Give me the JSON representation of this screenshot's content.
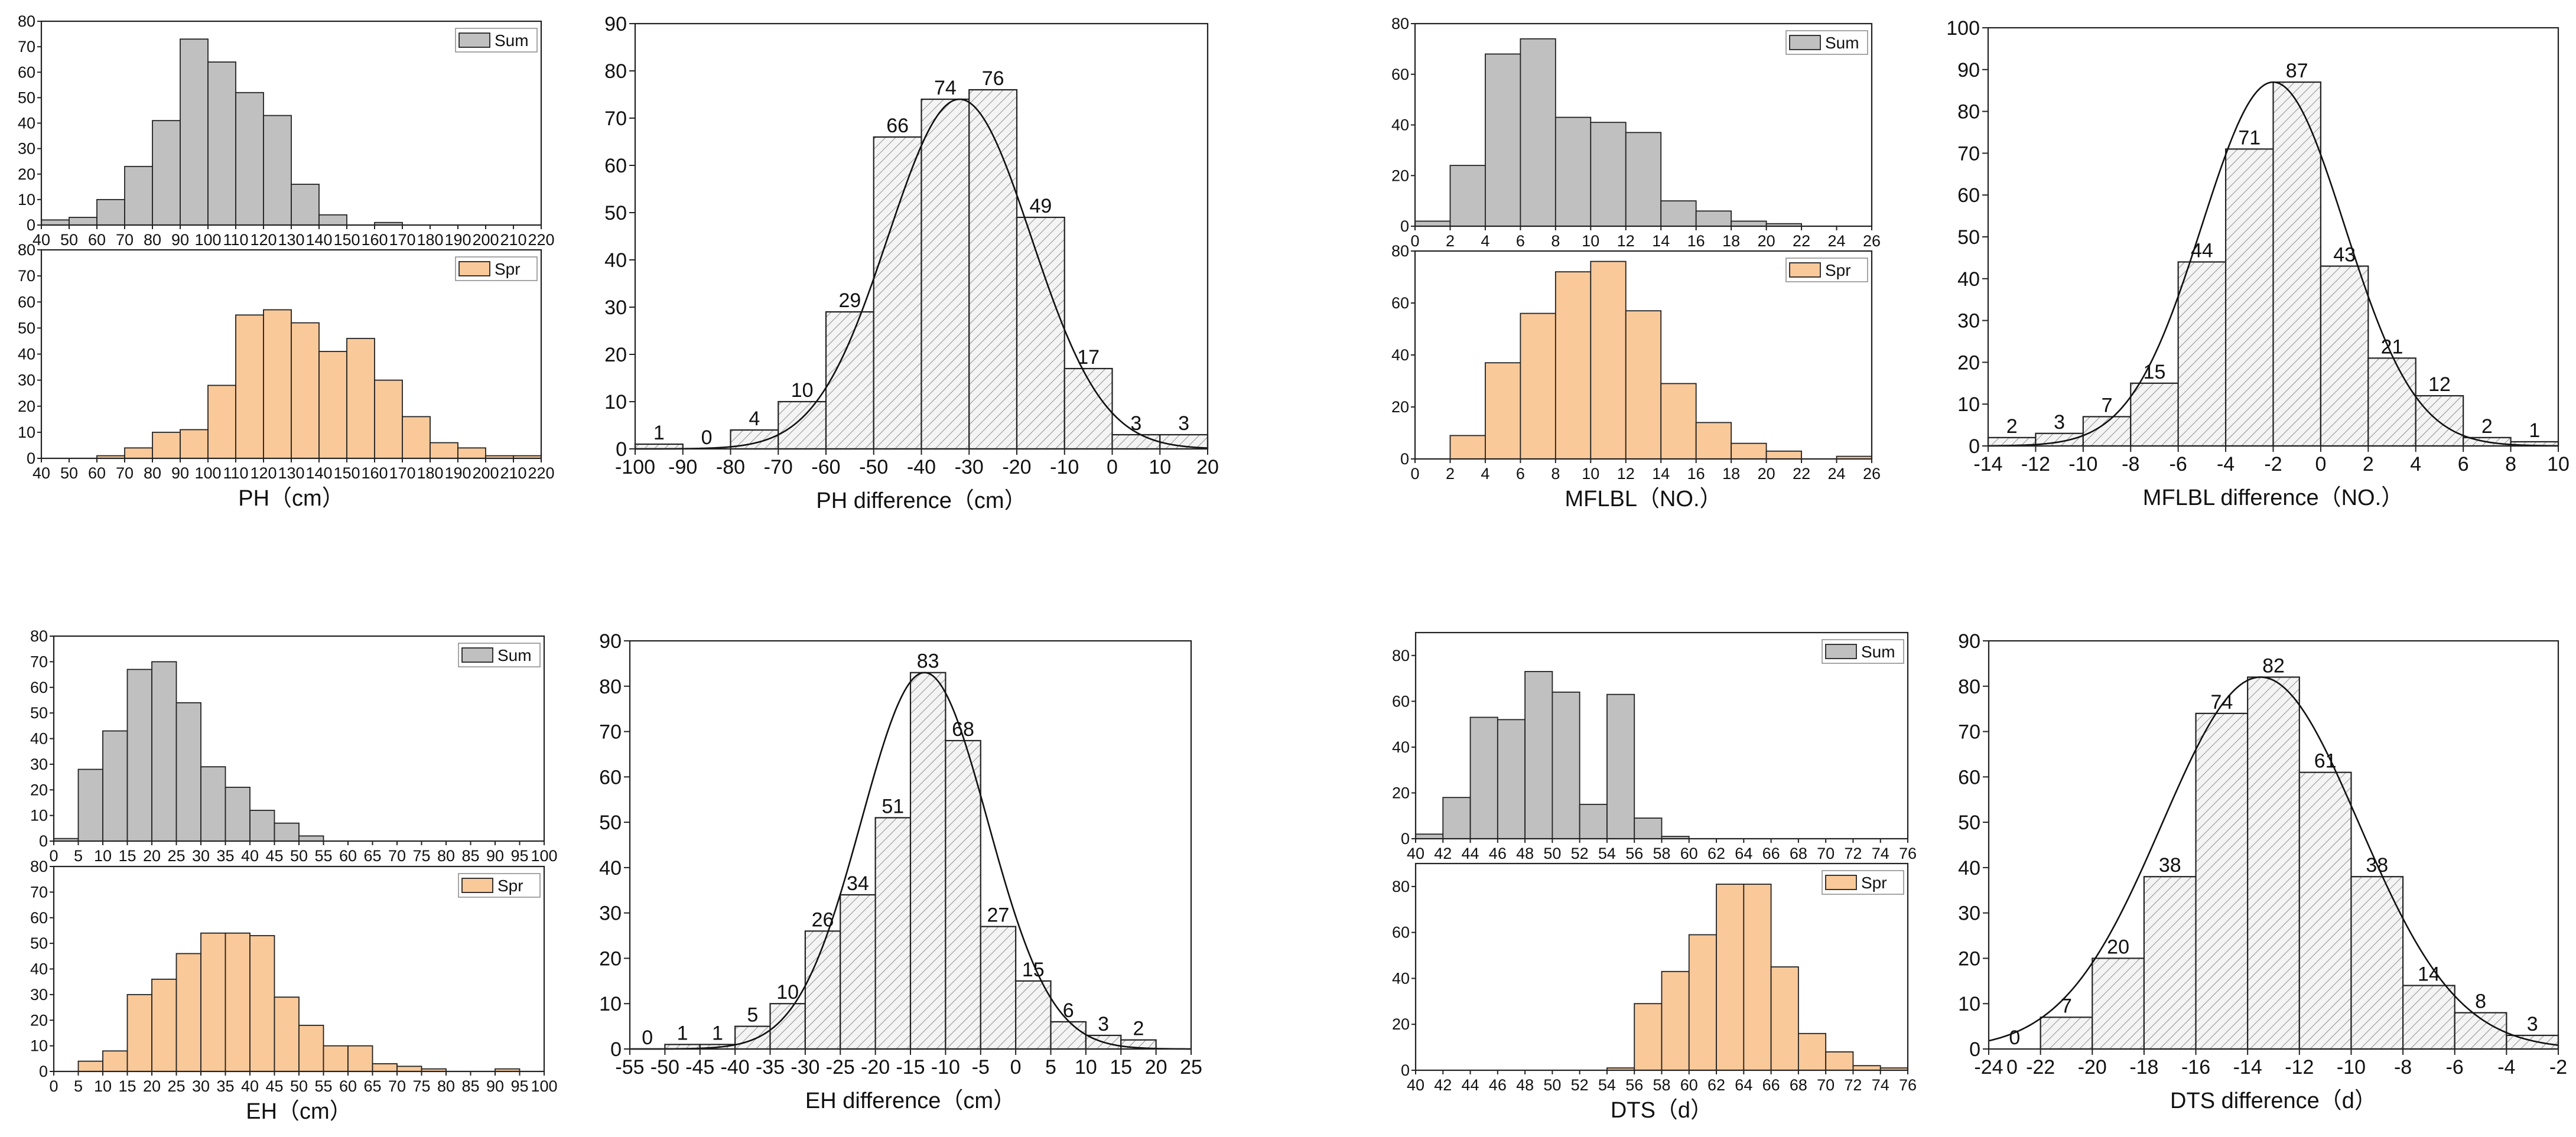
{
  "colors": {
    "sum_fill": "#c0c0c0",
    "spr_fill": "#f9c99a",
    "diff_fill": "#f4f4f4",
    "stroke": "#222222",
    "hatch": "#555555"
  },
  "chart_data": [
    {
      "id": "ph_sum",
      "type": "bar",
      "title": "",
      "xlabel": "",
      "ylabel": "",
      "legend": "Sum",
      "legend_position": "top-right",
      "x": [
        45,
        55,
        65,
        75,
        85,
        95,
        105,
        115,
        125,
        135,
        145,
        155,
        165,
        175,
        185,
        195,
        205,
        215
      ],
      "values": [
        2,
        3,
        10,
        23,
        41,
        73,
        64,
        52,
        43,
        16,
        4,
        0,
        1,
        0,
        0,
        0,
        0,
        0
      ],
      "bin_width": 10,
      "xlim": [
        40,
        220
      ],
      "ylim": [
        0,
        80
      ],
      "xticks": [
        40,
        50,
        60,
        70,
        80,
        90,
        100,
        110,
        120,
        130,
        140,
        150,
        160,
        170,
        180,
        190,
        200,
        210,
        220
      ],
      "yticks": [
        0,
        10,
        20,
        30,
        40,
        50,
        60,
        70,
        80
      ]
    },
    {
      "id": "ph_spr",
      "type": "bar",
      "title": "",
      "xlabel": "PH（cm）",
      "ylabel": "",
      "legend": "Spr",
      "legend_position": "top-right",
      "x": [
        45,
        55,
        65,
        75,
        85,
        95,
        105,
        115,
        125,
        135,
        145,
        155,
        165,
        175,
        185,
        195,
        205,
        215
      ],
      "values": [
        0,
        0,
        1,
        4,
        10,
        11,
        28,
        55,
        57,
        52,
        41,
        46,
        30,
        16,
        6,
        4,
        1,
        1
      ],
      "bin_width": 10,
      "xlim": [
        40,
        220
      ],
      "ylim": [
        0,
        80
      ],
      "xticks": [
        40,
        50,
        60,
        70,
        80,
        90,
        100,
        110,
        120,
        130,
        140,
        150,
        160,
        170,
        180,
        190,
        200,
        210,
        220
      ],
      "yticks": [
        0,
        10,
        20,
        30,
        40,
        50,
        60,
        70,
        80
      ]
    },
    {
      "id": "ph_diff",
      "type": "bar",
      "title": "",
      "xlabel": "PH difference（cm）",
      "ylabel": "",
      "fit": "normal",
      "x": [
        -95,
        -85,
        -75,
        -65,
        -55,
        -45,
        -35,
        -25,
        -15,
        -5,
        5,
        15
      ],
      "values": [
        1,
        0,
        4,
        10,
        29,
        66,
        74,
        76,
        49,
        17,
        3,
        3
      ],
      "labels": [
        "1",
        "0",
        "4",
        "10",
        "29",
        "66",
        "74",
        "76",
        "49",
        "17",
        "3",
        "3"
      ],
      "bin_width": 10,
      "fit_params": {
        "mean": -32,
        "sd": 15,
        "peak": 74
      },
      "xlim": [
        -100,
        20
      ],
      "ylim": [
        0,
        90
      ],
      "xticks": [
        -100,
        -90,
        -80,
        -70,
        -60,
        -50,
        -40,
        -30,
        -20,
        -10,
        0,
        10,
        20
      ],
      "yticks": [
        0,
        10,
        20,
        30,
        40,
        50,
        60,
        70,
        80,
        90
      ]
    },
    {
      "id": "mflbl_sum",
      "type": "bar",
      "title": "",
      "xlabel": "",
      "ylabel": "",
      "legend": "Sum",
      "legend_position": "top-right",
      "x": [
        1,
        3,
        5,
        7,
        9,
        11,
        13,
        15,
        17,
        19,
        21,
        23,
        25
      ],
      "values": [
        2,
        24,
        68,
        74,
        43,
        41,
        37,
        10,
        6,
        2,
        1,
        0,
        0
      ],
      "bin_width": 2,
      "xlim": [
        0,
        26
      ],
      "ylim": [
        0,
        80
      ],
      "xticks": [
        0,
        2,
        4,
        6,
        8,
        10,
        12,
        14,
        16,
        18,
        20,
        22,
        24,
        26
      ],
      "yticks": [
        0,
        20,
        40,
        60,
        80
      ]
    },
    {
      "id": "mflbl_spr",
      "type": "bar",
      "title": "",
      "xlabel": "MFLBL（NO.）",
      "ylabel": "",
      "legend": "Spr",
      "legend_position": "top-right",
      "x": [
        1,
        3,
        5,
        7,
        9,
        11,
        13,
        15,
        17,
        19,
        21,
        23,
        25
      ],
      "values": [
        0,
        9,
        37,
        56,
        72,
        76,
        57,
        29,
        14,
        6,
        3,
        0,
        1
      ],
      "bin_width": 2,
      "xlim": [
        0,
        26
      ],
      "ylim": [
        0,
        80
      ],
      "xticks": [
        0,
        2,
        4,
        6,
        8,
        10,
        12,
        14,
        16,
        18,
        20,
        22,
        24,
        26
      ],
      "yticks": [
        0,
        20,
        40,
        60,
        80
      ]
    },
    {
      "id": "mflbl_diff",
      "type": "bar",
      "title": "",
      "xlabel": "MFLBL difference（NO.）",
      "ylabel": "",
      "fit": "normal",
      "x": [
        -13,
        -11,
        -9,
        -7,
        -5,
        -3,
        -1,
        1,
        3,
        5,
        7,
        9
      ],
      "values": [
        2,
        3,
        7,
        15,
        44,
        71,
        87,
        43,
        21,
        12,
        2,
        1
      ],
      "labels": [
        "2",
        "3",
        "7",
        "15",
        "44",
        "71",
        "87",
        "43",
        "21",
        "12",
        "2",
        "1"
      ],
      "bin_width": 2,
      "fit_params": {
        "mean": -2,
        "sd": 3,
        "peak": 87
      },
      "xlim": [
        -14,
        10
      ],
      "ylim": [
        0,
        100
      ],
      "xticks": [
        -14,
        -12,
        -10,
        -8,
        -6,
        -4,
        -2,
        0,
        2,
        4,
        6,
        8,
        10
      ],
      "yticks": [
        0,
        10,
        20,
        30,
        40,
        50,
        60,
        70,
        80,
        90,
        100
      ]
    },
    {
      "id": "eh_sum",
      "type": "bar",
      "title": "",
      "xlabel": "",
      "ylabel": "",
      "legend": "Sum",
      "legend_position": "top-right",
      "x": [
        2.5,
        7.5,
        12.5,
        17.5,
        22.5,
        27.5,
        32.5,
        37.5,
        42.5,
        47.5,
        52.5,
        57.5,
        62.5,
        67.5,
        72.5,
        77.5,
        82.5,
        87.5,
        92.5,
        97.5
      ],
      "values": [
        1,
        28,
        43,
        67,
        70,
        54,
        29,
        21,
        12,
        7,
        2,
        0,
        0,
        0,
        0,
        0,
        0,
        0,
        0,
        0
      ],
      "bin_width": 5,
      "xlim": [
        0,
        100
      ],
      "ylim": [
        0,
        80
      ],
      "xticks": [
        0,
        5,
        10,
        15,
        20,
        25,
        30,
        35,
        40,
        45,
        50,
        55,
        60,
        65,
        70,
        75,
        80,
        85,
        90,
        95,
        100
      ],
      "yticks": [
        0,
        10,
        20,
        30,
        40,
        50,
        60,
        70,
        80
      ]
    },
    {
      "id": "eh_spr",
      "type": "bar",
      "title": "",
      "xlabel": "EH（cm）",
      "ylabel": "",
      "legend": "Spr",
      "legend_position": "top-right",
      "x": [
        2.5,
        7.5,
        12.5,
        17.5,
        22.5,
        27.5,
        32.5,
        37.5,
        42.5,
        47.5,
        52.5,
        57.5,
        62.5,
        67.5,
        72.5,
        77.5,
        82.5,
        87.5,
        92.5,
        97.5
      ],
      "values": [
        0,
        4,
        8,
        30,
        36,
        46,
        54,
        54,
        53,
        29,
        18,
        10,
        10,
        3,
        2,
        1,
        0,
        0,
        1,
        0
      ],
      "bin_width": 5,
      "xlim": [
        0,
        100
      ],
      "ylim": [
        0,
        80
      ],
      "xticks": [
        0,
        5,
        10,
        15,
        20,
        25,
        30,
        35,
        40,
        45,
        50,
        55,
        60,
        65,
        70,
        75,
        80,
        85,
        90,
        95,
        100
      ],
      "yticks": [
        0,
        10,
        20,
        30,
        40,
        50,
        60,
        70,
        80
      ]
    },
    {
      "id": "eh_diff",
      "type": "bar",
      "title": "",
      "xlabel": "EH difference（cm）",
      "ylabel": "",
      "fit": "normal",
      "x": [
        -52.5,
        -47.5,
        -42.5,
        -37.5,
        -32.5,
        -27.5,
        -22.5,
        -17.5,
        -12.5,
        -7.5,
        -2.5,
        2.5,
        7.5,
        12.5,
        17.5
      ],
      "values": [
        0,
        1,
        1,
        5,
        10,
        26,
        34,
        51,
        83,
        68,
        27,
        15,
        6,
        3,
        2
      ],
      "labels": [
        "0",
        "1",
        "1",
        "5",
        "10",
        "26",
        "34",
        "51",
        "83",
        "68",
        "27",
        "15",
        "6",
        "3",
        "2"
      ],
      "bin_width": 5,
      "fit_params": {
        "mean": -13,
        "sd": 9,
        "peak": 83
      },
      "xlim": [
        -55,
        25
      ],
      "ylim": [
        0,
        90
      ],
      "xticks": [
        -55,
        -50,
        -45,
        -40,
        -35,
        -30,
        -25,
        -20,
        -15,
        -10,
        -5,
        0,
        5,
        10,
        15,
        20,
        25
      ],
      "yticks": [
        0,
        10,
        20,
        30,
        40,
        50,
        60,
        70,
        80,
        90
      ]
    },
    {
      "id": "dts_sum",
      "type": "bar",
      "title": "",
      "xlabel": "",
      "ylabel": "",
      "legend": "Sum",
      "legend_position": "top-right",
      "x": [
        41,
        43,
        45,
        47,
        49,
        51,
        53,
        55,
        57,
        59,
        61,
        63,
        65,
        67,
        69,
        71,
        73,
        75
      ],
      "values": [
        2,
        18,
        53,
        52,
        73,
        64,
        15,
        63,
        9,
        1,
        0,
        0,
        0,
        0,
        0,
        0,
        0,
        0
      ],
      "bin_width": 2,
      "xlim": [
        40,
        76
      ],
      "ylim": [
        0,
        90
      ],
      "xticks": [
        40,
        42,
        44,
        46,
        48,
        50,
        52,
        54,
        56,
        58,
        60,
        62,
        64,
        66,
        68,
        70,
        72,
        74,
        76
      ],
      "yticks": [
        0,
        20,
        40,
        60,
        80
      ]
    },
    {
      "id": "dts_spr",
      "type": "bar",
      "title": "",
      "xlabel": "DTS（d）",
      "ylabel": "",
      "legend": "Spr",
      "legend_position": "top-right",
      "x": [
        41,
        43,
        45,
        47,
        49,
        51,
        53,
        55,
        57,
        59,
        61,
        63,
        65,
        67,
        69,
        71,
        73,
        75
      ],
      "values": [
        0,
        0,
        0,
        0,
        0,
        0,
        0,
        1,
        29,
        43,
        59,
        81,
        81,
        45,
        16,
        8,
        2,
        1
      ],
      "bin_width": 2,
      "xlim": [
        40,
        76
      ],
      "ylim": [
        0,
        90
      ],
      "xticks": [
        40,
        42,
        44,
        46,
        48,
        50,
        52,
        54,
        56,
        58,
        60,
        62,
        64,
        66,
        68,
        70,
        72,
        74,
        76
      ],
      "yticks": [
        0,
        20,
        40,
        60,
        80
      ]
    },
    {
      "id": "dts_diff",
      "type": "bar",
      "title": "",
      "xlabel": "DTS difference（d）",
      "ylabel": "",
      "fit": "normal",
      "x": [
        -23,
        -21,
        -19,
        -17,
        -15,
        -13,
        -11,
        -9,
        -7,
        -5,
        -3
      ],
      "values": [
        0,
        7,
        20,
        38,
        74,
        82,
        61,
        38,
        14,
        8,
        3
      ],
      "labels": [
        "0",
        "7",
        "20",
        "38",
        "74",
        "82",
        "61",
        "38",
        "14",
        "8",
        "3"
      ],
      "bin_width": 2,
      "fit_params": {
        "mean": -13.5,
        "sd": 3.8,
        "peak": 82
      },
      "xlim": [
        -24,
        -2
      ],
      "ylim": [
        0,
        90
      ],
      "xticks": [
        -24,
        -22,
        -20,
        -18,
        -16,
        -14,
        -12,
        -10,
        -8,
        -6,
        -4,
        -2
      ],
      "xtick_labels": [
        "",
        "-22",
        "-20",
        "-18",
        "-16",
        "-14",
        "-12",
        "-10",
        "-8",
        "-6",
        "-4",
        "-2"
      ],
      "extra_labels": [
        {
          "text": "-24",
          "x": -24
        },
        {
          "text": "0",
          "x": -23.1
        }
      ],
      "yticks": [
        0,
        10,
        20,
        30,
        40,
        50,
        60,
        70,
        80,
        90
      ]
    }
  ]
}
